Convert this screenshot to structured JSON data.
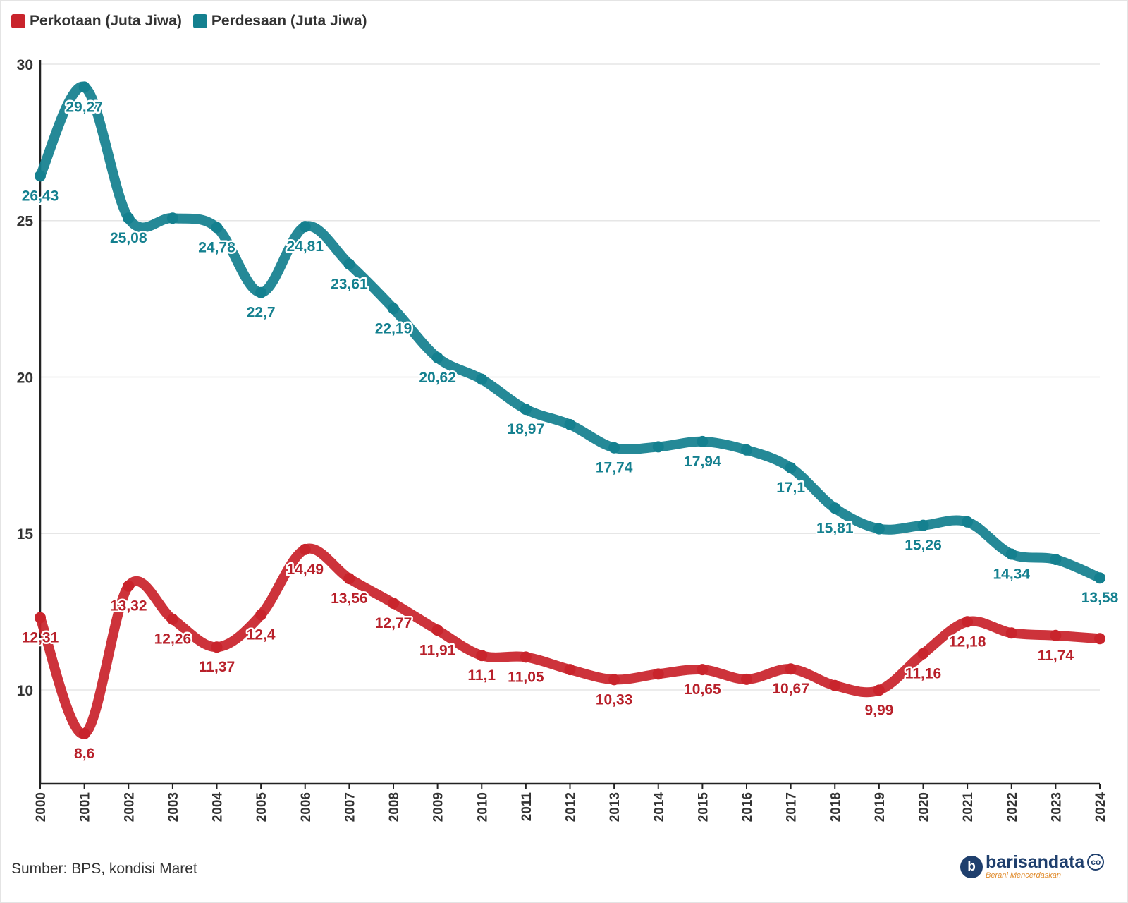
{
  "legend": [
    {
      "label": "Perkotaan (Juta Jiwa)",
      "color": "#c9242c"
    },
    {
      "label": "Perdesaan (Juta Jiwa)",
      "color": "#14808f"
    }
  ],
  "source": "Sumber: BPS, kondisi Maret",
  "brand": {
    "icon_letter": "b",
    "name": "barisandata",
    "tagline": "Berani Mencerdaskan",
    "suffix": "co"
  },
  "chart_data": {
    "type": "line",
    "title": "",
    "xlabel": "",
    "ylabel": "",
    "ylim": [
      7.0,
      30.0
    ],
    "yticks": [
      10,
      15,
      20,
      25,
      30
    ],
    "grid": true,
    "legend_position": "top-left",
    "x": [
      "2000",
      "2001",
      "2002",
      "2003",
      "2004",
      "2005",
      "2006",
      "2007",
      "2008",
      "2009",
      "2010",
      "2011",
      "2012",
      "2013",
      "2014",
      "2015",
      "2016",
      "2017",
      "2018",
      "2019",
      "2020",
      "2021",
      "2022",
      "2023",
      "2024"
    ],
    "series": [
      {
        "name": "Perkotaan (Juta Jiwa)",
        "color": "#c9242c",
        "label_color": "#b8202a",
        "values": [
          12.31,
          8.6,
          13.32,
          12.26,
          11.37,
          12.4,
          14.49,
          13.56,
          12.77,
          11.91,
          11.1,
          11.05,
          10.65,
          10.33,
          10.51,
          10.65,
          10.34,
          10.67,
          10.14,
          9.99,
          11.16,
          12.18,
          11.82,
          11.74,
          11.64
        ],
        "labels": [
          "12,31",
          "8,6",
          "13,32",
          "12,26",
          "11,37",
          "12,4",
          "14,49",
          "13,56",
          "12,77",
          "11,91",
          "11,1",
          "11,05",
          "",
          "10,33",
          "",
          "10,65",
          "",
          "10,67",
          "",
          "9,99",
          "11,16",
          "12,18",
          "",
          "11,74",
          ""
        ]
      },
      {
        "name": "Perdesaan (Juta Jiwa)",
        "color": "#14808f",
        "label_color": "#14808f",
        "values": [
          26.43,
          29.27,
          25.08,
          25.08,
          24.78,
          22.7,
          24.81,
          23.61,
          22.19,
          20.62,
          19.93,
          18.97,
          18.48,
          17.74,
          17.77,
          17.94,
          17.67,
          17.1,
          15.81,
          15.15,
          15.26,
          15.37,
          14.34,
          14.17,
          13.58
        ],
        "labels": [
          "26,43",
          "29,27",
          "25,08",
          "",
          "24,78",
          "22,7",
          "24,81",
          "23,61",
          "22,19",
          "20,62",
          "",
          "18,97",
          "",
          "17,74",
          "",
          "17,94",
          "",
          "17,1",
          "15,81",
          "",
          "15,26",
          "",
          "14,34",
          "",
          "13,58"
        ]
      }
    ]
  }
}
